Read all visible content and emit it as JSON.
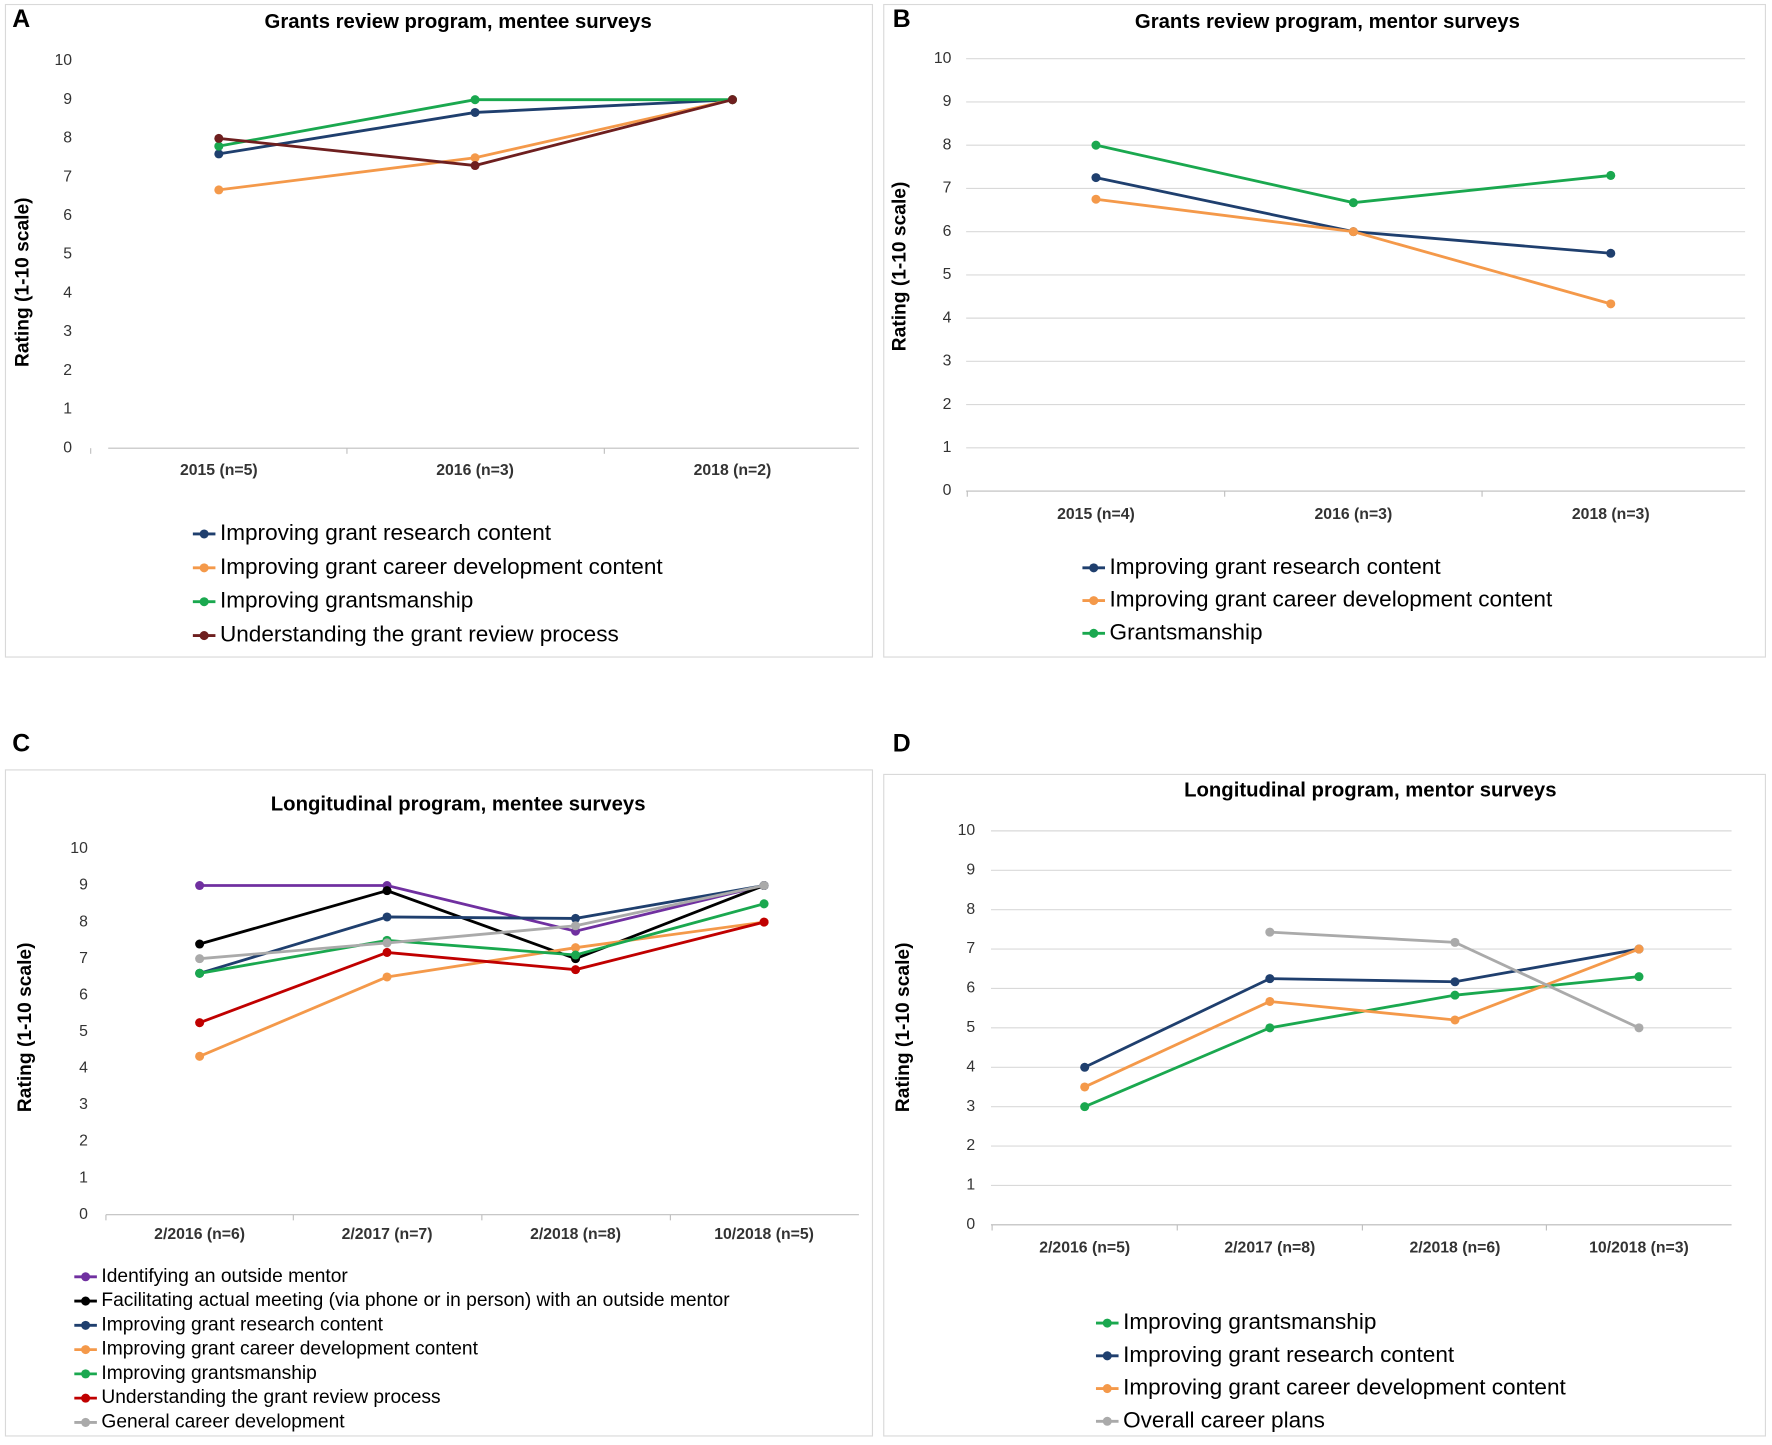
{
  "chart_data": [
    {
      "type": "line",
      "panel": "A",
      "title": "Grants review program, mentee surveys",
      "y_label": "Rating (1-10 scale)",
      "categories": [
        "2015 (n=5)",
        "2016 (n=3)",
        "2018 (n=2)"
      ],
      "ylim": [
        0,
        10
      ],
      "yticks": [
        0,
        1,
        2,
        3,
        4,
        5,
        6,
        7,
        8,
        9,
        10
      ],
      "grid": false,
      "series": [
        {
          "name": "Improving grant research content",
          "color": "#1f3f6e",
          "values": [
            7.6,
            8.67,
            9
          ]
        },
        {
          "name": "Improving grant career development content",
          "color": "#f4994a",
          "values": [
            6.67,
            7.5,
            9
          ]
        },
        {
          "name": "Improving grantsmanship",
          "color": "#1aa84f",
          "values": [
            7.8,
            9,
            9
          ]
        },
        {
          "name": "Understanding the grant review process",
          "color": "#6e1f1f",
          "values": [
            8,
            7.3,
            9
          ]
        }
      ]
    },
    {
      "type": "line",
      "panel": "B",
      "title": "Grants review program, mentor surveys",
      "y_label": "Rating (1-10 scale)",
      "categories": [
        "2015 (n=4)",
        "2016 (n=3)",
        "2018 (n=3)"
      ],
      "ylim": [
        0,
        10
      ],
      "yticks": [
        0,
        1,
        2,
        3,
        4,
        5,
        6,
        7,
        8,
        9,
        10
      ],
      "grid": true,
      "series": [
        {
          "name": "Improving grant research content",
          "color": "#1f3f6e",
          "values": [
            7.25,
            6,
            5.5
          ]
        },
        {
          "name": "Improving grant career development content",
          "color": "#f4994a",
          "values": [
            6.75,
            6,
            4.33
          ]
        },
        {
          "name": "Grantsmanship",
          "color": "#1aa84f",
          "values": [
            8,
            6.67,
            7.3
          ]
        }
      ]
    },
    {
      "type": "line",
      "panel": "C",
      "title": "Longitudinal program, mentee surveys",
      "y_label": "Rating (1-10 scale)",
      "categories": [
        "2/2016 (n=6)",
        "2/2017 (n=7)",
        "2/2018 (n=8)",
        "10/2018 (n=5)"
      ],
      "ylim": [
        0,
        10
      ],
      "yticks": [
        0,
        1,
        2,
        3,
        4,
        5,
        6,
        7,
        8,
        9,
        10
      ],
      "grid": false,
      "series": [
        {
          "name": "Identifying an outside mentor",
          "color": "#7030a0",
          "values": [
            9,
            9,
            7.75,
            9
          ]
        },
        {
          "name": "Facilitating actual meeting (via phone or in person) with an outside mentor",
          "color": "#000000",
          "values": [
            7.4,
            8.86,
            7,
            9
          ]
        },
        {
          "name": "Improving grant research content",
          "color": "#1f3f6e",
          "values": [
            6.6,
            8.14,
            8.1,
            9
          ]
        },
        {
          "name": "Improving grant career development content",
          "color": "#f4994a",
          "values": [
            4.33,
            6.5,
            7.3,
            8
          ]
        },
        {
          "name": "Improving grantsmanship",
          "color": "#1aa84f",
          "values": [
            6.6,
            7.5,
            7.1,
            8.5
          ]
        },
        {
          "name": "Understanding the grant review process",
          "color": "#c00000",
          "values": [
            5.25,
            7.17,
            6.7,
            8
          ]
        },
        {
          "name": "General career development",
          "color": "#aaaaaa",
          "values": [
            7,
            7.43,
            7.9,
            9
          ]
        }
      ]
    },
    {
      "type": "line",
      "panel": "D",
      "title": "Longitudinal program, mentor surveys",
      "y_label": "Rating (1-10 scale)",
      "categories": [
        "2/2016 (n=5)",
        "2/2017 (n=8)",
        "2/2018 (n=6)",
        "10/2018 (n=3)"
      ],
      "ylim": [
        0,
        10
      ],
      "yticks": [
        0,
        1,
        2,
        3,
        4,
        5,
        6,
        7,
        8,
        9,
        10
      ],
      "grid": true,
      "series": [
        {
          "name": "Improving grantsmanship",
          "color": "#1aa84f",
          "values": [
            3,
            5,
            5.83,
            6.3
          ]
        },
        {
          "name": "Improving grant research content",
          "color": "#1f3f6e",
          "values": [
            4,
            6.25,
            6.17,
            7
          ]
        },
        {
          "name": "Improving grant career development content",
          "color": "#f4994a",
          "values": [
            3.5,
            5.67,
            5.2,
            7
          ]
        },
        {
          "name": "Overall career plans",
          "color": "#aaaaaa",
          "values": [
            null,
            7.43,
            7.17,
            5
          ]
        }
      ]
    }
  ]
}
